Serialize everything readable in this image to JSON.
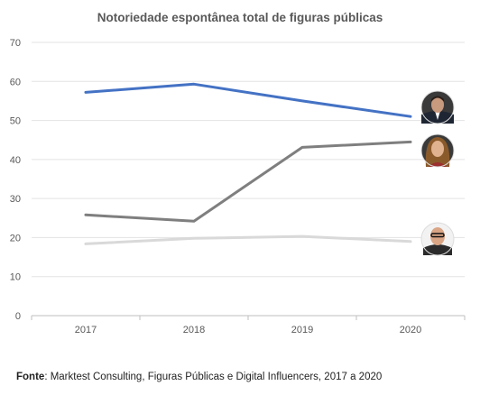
{
  "chart_data": {
    "type": "line",
    "title": "Notoriedade espontânea total de figuras públicas",
    "xlabel": "",
    "ylabel": "",
    "categories": [
      "2017",
      "2018",
      "2019",
      "2020"
    ],
    "ylim": [
      0,
      70
    ],
    "yticks": [
      0,
      10,
      20,
      30,
      40,
      50,
      60,
      70
    ],
    "grid": "horizontal",
    "legend": "portrait photos at line ends (no text legend)",
    "series": [
      {
        "values": [
          57.2,
          59.3,
          55.0,
          51.0
        ],
        "color": "#4472c4",
        "end_marker": "portrait-man-suit-photo"
      },
      {
        "values": [
          25.8,
          24.2,
          43.1,
          44.5
        ],
        "color": "#7f7f7f",
        "end_marker": "portrait-woman-long-hair-photo"
      },
      {
        "values": [
          18.4,
          19.8,
          20.3,
          19.0
        ],
        "color": "#d9d9d9",
        "end_marker": "portrait-man-glasses-photo"
      }
    ]
  },
  "source": {
    "label": "Fonte",
    "text": ": Marktest Consulting, Figuras Públicas e Digital Influencers, 2017 a 2020"
  }
}
